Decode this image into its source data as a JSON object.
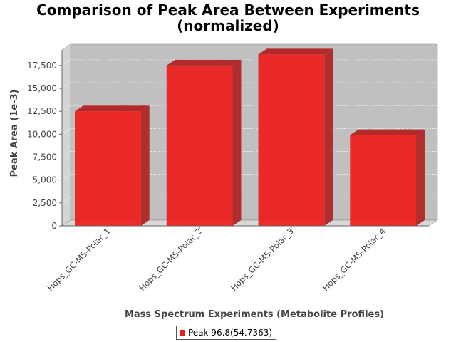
{
  "chart_data": {
    "type": "bar",
    "title": "Comparison of Peak Area Between Experiments",
    "subtitle": "(normalized)",
    "xlabel": "Mass Spectrum Experiments (Metabolite Profiles)",
    "ylabel": "Peak Area (1e-3)",
    "categories": [
      "Hops_GC-MS-Polar_1",
      "Hops_GC-MS-Polar_2",
      "Hops_GC-MS-Polar_3",
      "Hops_GC-MS-Polar_4"
    ],
    "series": [
      {
        "name": "Peak 96.8(54.7363)",
        "values": [
          12500,
          17500,
          18700,
          9900
        ]
      }
    ],
    "ylim": [
      0,
      19200
    ],
    "yticks": [
      0,
      2500,
      5000,
      7500,
      10000,
      12500,
      15000,
      17500
    ],
    "ytick_labels": [
      "0",
      "2,500",
      "5,000",
      "7,500",
      "10,000",
      "12,500",
      "15,000",
      "17,500"
    ],
    "grid": true,
    "legend_position": "bottom",
    "colors": {
      "bar": "#ee1c1c",
      "plot_background": "#c0c0c0",
      "grid": "#ffffff"
    }
  }
}
